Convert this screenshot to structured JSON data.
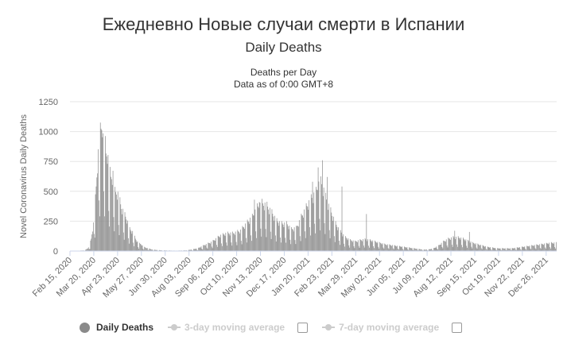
{
  "page_title": "Ежедневно Новые случаи смерти в Испании",
  "chart_data": {
    "type": "bar",
    "title": "Daily Deaths",
    "subtitle_lines": [
      "Deaths per Day",
      "Data as of 0:00 GMT+8"
    ],
    "xlabel": "",
    "ylabel": "Novel Coronavirus Daily Deaths",
    "ylim": [
      0,
      1250
    ],
    "yticks": [
      0,
      250,
      500,
      750,
      1000,
      1250
    ],
    "grid": true,
    "x_tick_labels": [
      "Feb 15, 2020",
      "Mar 20, 2020",
      "Apr 23, 2020",
      "May 27, 2020",
      "Jun 30, 2020",
      "Aug 03, 2020",
      "Sep 06, 2020",
      "Oct 10, 2020",
      "Nov 13, 2020",
      "Dec 17, 2020",
      "Jan 20, 2021",
      "Feb 23, 2021",
      "Mar 29, 2021",
      "May 02, 2021",
      "Jun 05, 2021",
      "Jul 09, 2021",
      "Aug 12, 2021",
      "Sep 15, 2021",
      "Oct 19, 2021",
      "Nov 22, 2021",
      "Dec 26, 2021"
    ],
    "series": [
      {
        "name": "Daily Deaths",
        "color": "#8a8a8a",
        "points": [
          [
            "Feb 15, 2020",
            0
          ],
          [
            "Mar 07, 2020",
            5
          ],
          [
            "Mar 13, 2020",
            30
          ],
          [
            "Mar 16, 2020",
            90
          ],
          [
            "Mar 19, 2020",
            200
          ],
          [
            "Mar 22, 2020",
            380
          ],
          [
            "Mar 25, 2020",
            650
          ],
          [
            "Mar 28, 2020",
            830
          ],
          [
            "Mar 31, 2020",
            920
          ],
          [
            "Apr 02, 2020",
            985
          ],
          [
            "Apr 04, 2020",
            830
          ],
          [
            "Apr 06, 2020",
            710
          ],
          [
            "Apr 08, 2020",
            730
          ],
          [
            "Apr 10, 2020",
            610
          ],
          [
            "Apr 13, 2020",
            540
          ],
          [
            "Apr 16, 2020",
            560
          ],
          [
            "Apr 19, 2020",
            430
          ],
          [
            "Apr 22, 2020",
            430
          ],
          [
            "Apr 25, 2020",
            380
          ],
          [
            "Apr 28, 2020",
            320
          ],
          [
            "May 02, 2020",
            270
          ],
          [
            "May 06, 2020",
            230
          ],
          [
            "May 10, 2020",
            160
          ],
          [
            "May 14, 2020",
            140
          ],
          [
            "May 18, 2020",
            90
          ],
          [
            "May 22, 2020",
            60
          ],
          [
            "May 26, 2020",
            50
          ],
          [
            "May 30, 2020",
            30
          ],
          [
            "Jun 05, 2020",
            20
          ],
          [
            "Jun 12, 2020",
            10
          ],
          [
            "Jun 25, 2020",
            5
          ],
          [
            "Jul 15, 2020",
            3
          ],
          [
            "Jul 30, 2020",
            5
          ],
          [
            "Aug 05, 2020",
            10
          ],
          [
            "Aug 15, 2020",
            20
          ],
          [
            "Aug 25, 2020",
            45
          ],
          [
            "Sep 05, 2020",
            70
          ],
          [
            "Sep 15, 2020",
            110
          ],
          [
            "Sep 25, 2020",
            130
          ],
          [
            "Oct 05, 2020",
            130
          ],
          [
            "Oct 15, 2020",
            150
          ],
          [
            "Oct 25, 2020",
            210
          ],
          [
            "Nov 01, 2020",
            250
          ],
          [
            "Nov 08, 2020",
            320
          ],
          [
            "Nov 15, 2020",
            350
          ],
          [
            "Nov 22, 2020",
            330
          ],
          [
            "Nov 29, 2020",
            280
          ],
          [
            "Dec 06, 2020",
            220
          ],
          [
            "Dec 13, 2020",
            200
          ],
          [
            "Dec 20, 2020",
            200
          ],
          [
            "Dec 27, 2020",
            160
          ],
          [
            "Jan 03, 2021",
            170
          ],
          [
            "Jan 10, 2021",
            250
          ],
          [
            "Jan 17, 2021",
            320
          ],
          [
            "Jan 24, 2021",
            380
          ],
          [
            "Jan 31, 2021",
            430
          ],
          [
            "Feb 03, 2021",
            480
          ],
          [
            "Feb 07, 2021",
            500
          ],
          [
            "Feb 10, 2021",
            460
          ],
          [
            "Feb 14, 2021",
            390
          ],
          [
            "Feb 18, 2021",
            330
          ],
          [
            "Feb 22, 2021",
            280
          ],
          [
            "Feb 28, 2021",
            200
          ],
          [
            "Mar 07, 2021",
            140
          ],
          [
            "Mar 14, 2021",
            100
          ],
          [
            "Mar 21, 2021",
            80
          ],
          [
            "Mar 28, 2021",
            70
          ],
          [
            "Apr 04, 2021",
            80
          ],
          [
            "Apr 11, 2021",
            85
          ],
          [
            "Apr 18, 2021",
            80
          ],
          [
            "Apr 25, 2021",
            70
          ],
          [
            "May 02, 2021",
            60
          ],
          [
            "May 09, 2021",
            50
          ],
          [
            "May 16, 2021",
            45
          ],
          [
            "May 23, 2021",
            40
          ],
          [
            "May 30, 2021",
            35
          ],
          [
            "Jun 06, 2021",
            30
          ],
          [
            "Jun 13, 2021",
            25
          ],
          [
            "Jun 20, 2021",
            20
          ],
          [
            "Jun 27, 2021",
            15
          ],
          [
            "Jul 04, 2021",
            10
          ],
          [
            "Jul 11, 2021",
            12
          ],
          [
            "Jul 18, 2021",
            20
          ],
          [
            "Jul 25, 2021",
            40
          ],
          [
            "Aug 01, 2021",
            70
          ],
          [
            "Aug 08, 2021",
            90
          ],
          [
            "Aug 15, 2021",
            100
          ],
          [
            "Aug 22, 2021",
            100
          ],
          [
            "Aug 29, 2021",
            90
          ],
          [
            "Sep 05, 2021",
            75
          ],
          [
            "Sep 12, 2021",
            60
          ],
          [
            "Sep 19, 2021",
            50
          ],
          [
            "Sep 26, 2021",
            40
          ],
          [
            "Oct 03, 2021",
            30
          ],
          [
            "Oct 10, 2021",
            25
          ],
          [
            "Oct 17, 2021",
            20
          ],
          [
            "Oct 24, 2021",
            20
          ],
          [
            "Oct 31, 2021",
            20
          ],
          [
            "Nov 07, 2021",
            20
          ],
          [
            "Nov 14, 2021",
            25
          ],
          [
            "Nov 21, 2021",
            30
          ],
          [
            "Nov 28, 2021",
            35
          ],
          [
            "Dec 05, 2021",
            40
          ],
          [
            "Dec 12, 2021",
            45
          ],
          [
            "Dec 19, 2021",
            50
          ],
          [
            "Dec 26, 2021",
            55
          ],
          [
            "Jan 01, 2022",
            60
          ]
        ]
      },
      {
        "name": "3-day moving average",
        "color": "#cccccc",
        "visible": false
      },
      {
        "name": "7-day moving average",
        "color": "#cccccc",
        "visible": false
      }
    ],
    "legend_position": "bottom"
  }
}
